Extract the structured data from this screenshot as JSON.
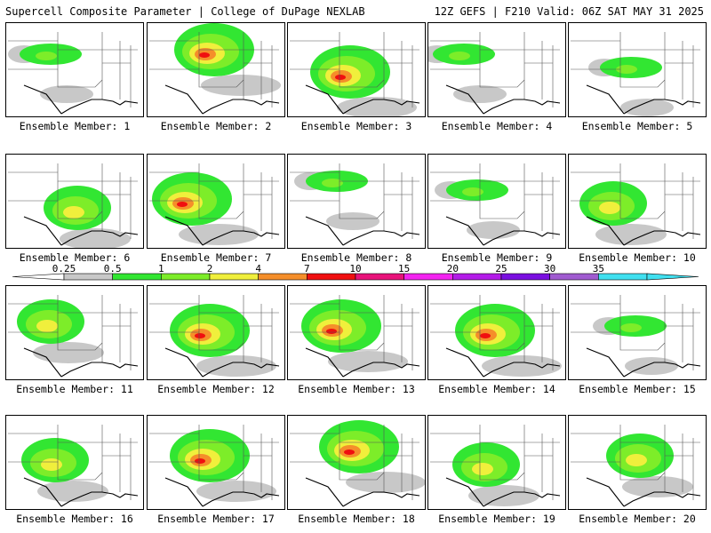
{
  "header": {
    "left": "Supercell Composite Parameter | College of DuPage NEXLAB",
    "right": "12Z GEFS | F210 Valid: 06Z SAT MAY 31 2025"
  },
  "members": [
    {
      "label": "Ensemble Member: 1",
      "level": "low"
    },
    {
      "label": "Ensemble Member: 2",
      "level": "high"
    },
    {
      "label": "Ensemble Member: 3",
      "level": "high"
    },
    {
      "label": "Ensemble Member: 4",
      "level": "low"
    },
    {
      "label": "Ensemble Member: 5",
      "level": "low"
    },
    {
      "label": "Ensemble Member: 6",
      "level": "mid"
    },
    {
      "label": "Ensemble Member: 7",
      "level": "high"
    },
    {
      "label": "Ensemble Member: 8",
      "level": "low"
    },
    {
      "label": "Ensemble Member: 9",
      "level": "low"
    },
    {
      "label": "Ensemble Member: 10",
      "level": "mid"
    },
    {
      "label": "Ensemble Member: 11",
      "level": "mid"
    },
    {
      "label": "Ensemble Member: 12",
      "level": "high"
    },
    {
      "label": "Ensemble Member: 13",
      "level": "high"
    },
    {
      "label": "Ensemble Member: 14",
      "level": "high"
    },
    {
      "label": "Ensemble Member: 15",
      "level": "low"
    },
    {
      "label": "Ensemble Member: 16",
      "level": "mid"
    },
    {
      "label": "Ensemble Member: 17",
      "level": "high"
    },
    {
      "label": "Ensemble Member: 18",
      "level": "high"
    },
    {
      "label": "Ensemble Member: 19",
      "level": "mid"
    },
    {
      "label": "Ensemble Member: 20",
      "level": "mid"
    }
  ],
  "colorbar": {
    "ticks": [
      "0.25",
      "0.5",
      "1",
      "2",
      "4",
      "7",
      "10",
      "15",
      "20",
      "25",
      "30",
      "35"
    ],
    "colors": [
      "#c8c8c8",
      "#32e632",
      "#7ded29",
      "#f0ef3c",
      "#f58e2a",
      "#f00f10",
      "#e8137a",
      "#f323f0",
      "#b31be8",
      "#7a0fe0",
      "#a05bd0",
      "#40e0f0"
    ]
  },
  "fill_colors": {
    "gray": "#c8c8c8",
    "green": "#32e632",
    "lightgreen": "#7ded29",
    "yellow": "#f0ef3c",
    "orange": "#f58e2a",
    "red": "#f00f10",
    "magenta": "#e8137a"
  }
}
